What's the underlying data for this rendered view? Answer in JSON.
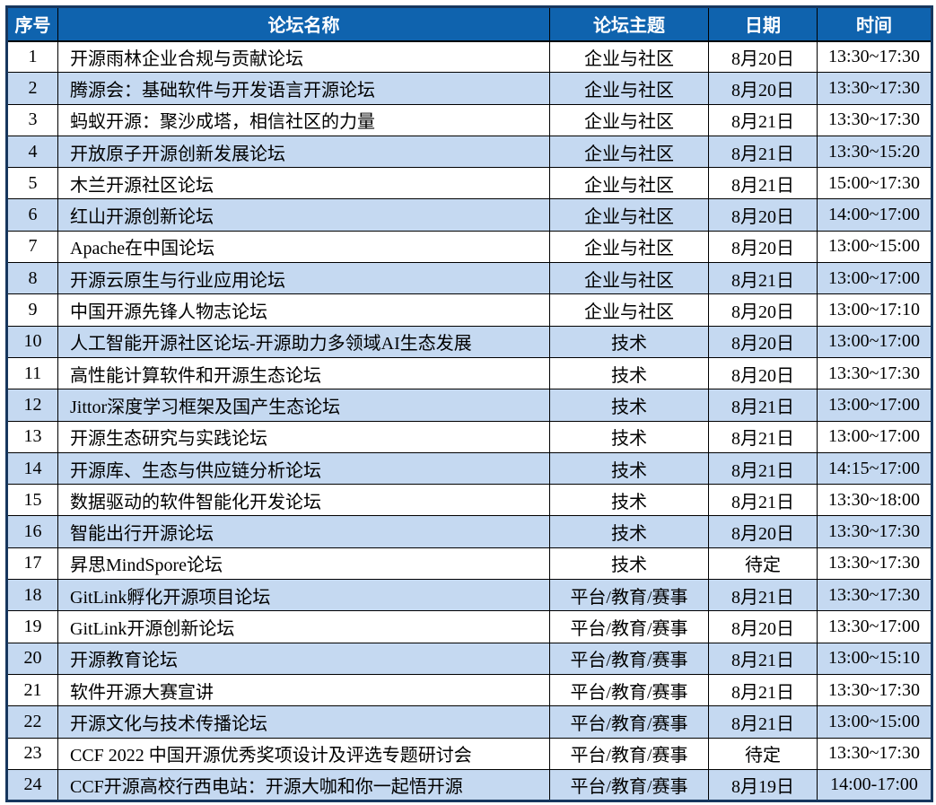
{
  "colors": {
    "header_bg": "#0F63AE",
    "header_text": "#FFFFFF",
    "row_bg": "#FFFFFF",
    "alt_row_bg": "#C5D9F1",
    "grid_line": "#000000",
    "outer_border": "#17375E"
  },
  "table": {
    "columns": [
      "序号",
      "论坛名称",
      "论坛主题",
      "日期",
      "时间"
    ],
    "fields": [
      "no",
      "name",
      "topic",
      "date",
      "time"
    ],
    "rows": [
      {
        "no": "1",
        "name": "开源雨林企业合规与贡献论坛",
        "topic": "企业与社区",
        "date": "8月20日",
        "time": "13:30~17:30"
      },
      {
        "no": "2",
        "name": "腾源会：基础软件与开发语言开源论坛",
        "topic": "企业与社区",
        "date": "8月20日",
        "time": "13:30~17:30"
      },
      {
        "no": "3",
        "name": "蚂蚁开源：聚沙成塔，相信社区的力量",
        "topic": "企业与社区",
        "date": "8月21日",
        "time": "13:30~17:30"
      },
      {
        "no": "4",
        "name": "开放原子开源创新发展论坛",
        "topic": "企业与社区",
        "date": "8月21日",
        "time": "13:30~15:20"
      },
      {
        "no": "5",
        "name": "木兰开源社区论坛",
        "topic": "企业与社区",
        "date": "8月21日",
        "time": "15:00~17:30"
      },
      {
        "no": "6",
        "name": "红山开源创新论坛",
        "topic": "企业与社区",
        "date": "8月20日",
        "time": "14:00~17:00"
      },
      {
        "no": "7",
        "name": "Apache在中国论坛",
        "topic": "企业与社区",
        "date": "8月20日",
        "time": "13:00~15:00"
      },
      {
        "no": "8",
        "name": "开源云原生与行业应用论坛",
        "topic": "企业与社区",
        "date": "8月21日",
        "time": "13:00~17:00"
      },
      {
        "no": "9",
        "name": "中国开源先锋人物志论坛",
        "topic": "企业与社区",
        "date": "8月20日",
        "time": "13:00~17:10"
      },
      {
        "no": "10",
        "name": "人工智能开源社区论坛-开源助力多领域AI生态发展",
        "topic": "技术",
        "date": "8月20日",
        "time": "13:00~17:00"
      },
      {
        "no": "11",
        "name": "高性能计算软件和开源生态论坛",
        "topic": "技术",
        "date": "8月20日",
        "time": "13:30~17:30"
      },
      {
        "no": "12",
        "name": "Jittor深度学习框架及国产生态论坛",
        "topic": "技术",
        "date": "8月21日",
        "time": "13:00~17:00"
      },
      {
        "no": "13",
        "name": "开源生态研究与实践论坛",
        "topic": "技术",
        "date": "8月21日",
        "time": "13:00~17:00"
      },
      {
        "no": "14",
        "name": "开源库、生态与供应链分析论坛",
        "topic": "技术",
        "date": "8月21日",
        "time": "14:15~17:00"
      },
      {
        "no": "15",
        "name": "数据驱动的软件智能化开发论坛",
        "topic": "技术",
        "date": "8月21日",
        "time": "13:30~18:00"
      },
      {
        "no": "16",
        "name": "智能出行开源论坛",
        "topic": "技术",
        "date": "8月20日",
        "time": "13:30~17:30"
      },
      {
        "no": "17",
        "name": "昇思MindSpore论坛",
        "topic": "技术",
        "date": "待定",
        "time": "13:30~17:30"
      },
      {
        "no": "18",
        "name": "GitLink孵化开源项目论坛",
        "topic": "平台/教育/赛事",
        "date": "8月21日",
        "time": "13:30~17:30"
      },
      {
        "no": "19",
        "name": "GitLink开源创新论坛",
        "topic": "平台/教育/赛事",
        "date": "8月20日",
        "time": "13:30~17:00"
      },
      {
        "no": "20",
        "name": "开源教育论坛",
        "topic": "平台/教育/赛事",
        "date": "8月21日",
        "time": "13:00~15:10"
      },
      {
        "no": "21",
        "name": "软件开源大赛宣讲",
        "topic": "平台/教育/赛事",
        "date": "8月21日",
        "time": "13:30~17:30"
      },
      {
        "no": "22",
        "name": "开源文化与技术传播论坛",
        "topic": "平台/教育/赛事",
        "date": "8月21日",
        "time": "13:00~15:00"
      },
      {
        "no": "23",
        "name": "CCF 2022 中国开源优秀奖项设计及评选专题研讨会",
        "topic": "平台/教育/赛事",
        "date": "待定",
        "time": "13:30~17:30"
      },
      {
        "no": "24",
        "name": "CCF开源高校行西电站：开源大咖和你一起悟开源",
        "topic": "平台/教育/赛事",
        "date": "8月19日",
        "time": "14:00-17:00"
      }
    ]
  }
}
